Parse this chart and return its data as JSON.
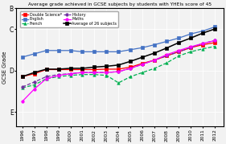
{
  "title": "Average grade achieved in GCSE subjects by students with YHEIs score of 45",
  "ylabel": "GCSE Grade",
  "years": [
    1996,
    1997,
    1998,
    1999,
    2000,
    2001,
    2002,
    2003,
    2004,
    2005,
    2006,
    2007,
    2008,
    2009,
    2010,
    2011,
    2012
  ],
  "series": {
    "Double Science*": {
      "color": "#ff0000",
      "style": "-",
      "marker": "s",
      "markersize": 2.5,
      "lw": 0.9,
      "values": [
        3.15,
        3.08,
        2.98,
        2.98,
        2.98,
        2.98,
        2.98,
        2.97,
        2.97,
        2.92,
        2.83,
        2.75,
        2.65,
        2.55,
        2.45,
        2.38,
        2.33
      ]
    },
    "English": {
      "color": "#4472c4",
      "style": "-",
      "marker": "s",
      "markersize": 2.5,
      "lw": 0.9,
      "values": [
        2.68,
        2.6,
        2.52,
        2.52,
        2.52,
        2.55,
        2.55,
        2.55,
        2.55,
        2.5,
        2.45,
        2.38,
        2.3,
        2.22,
        2.12,
        2.05,
        1.95
      ]
    },
    "French": {
      "color": "#00b050",
      "style": "--",
      "marker": "^",
      "markersize": 2.5,
      "lw": 0.9,
      "values": [
        3.42,
        3.35,
        3.2,
        3.15,
        3.12,
        3.1,
        3.1,
        3.12,
        3.3,
        3.15,
        3.05,
        2.95,
        2.82,
        2.65,
        2.55,
        2.48,
        2.42
      ]
    },
    "History": {
      "color": "#7030a0",
      "style": "--",
      "marker": "o",
      "markersize": 2.5,
      "lw": 0.9,
      "values": [
        3.4,
        3.28,
        3.15,
        3.1,
        3.08,
        3.05,
        3.05,
        3.05,
        3.03,
        2.95,
        2.85,
        2.75,
        2.65,
        2.55,
        2.45,
        2.35,
        2.28
      ]
    },
    "Maths": {
      "color": "#ff00ff",
      "style": "-",
      "marker": "o",
      "markersize": 2.5,
      "lw": 0.9,
      "values": [
        3.75,
        3.45,
        3.2,
        3.12,
        3.08,
        3.05,
        3.05,
        3.05,
        3.03,
        2.95,
        2.85,
        2.75,
        2.62,
        2.52,
        2.43,
        2.35,
        2.28
      ]
    },
    "Average of 26 subjects": {
      "color": "#000000",
      "style": "-",
      "marker": "s",
      "markersize": 3.2,
      "lw": 1.1,
      "values": [
        3.15,
        3.05,
        2.97,
        2.97,
        2.95,
        2.95,
        2.92,
        2.9,
        2.87,
        2.78,
        2.68,
        2.58,
        2.46,
        2.33,
        2.22,
        2.1,
        2.0
      ]
    }
  },
  "ytick_positions": [
    1.5,
    2.0,
    3.0,
    4.0
  ],
  "ytick_labels": [
    "B",
    "C",
    "D",
    "E"
  ],
  "ylim": [
    4.35,
    1.55
  ],
  "xlim": [
    1995.5,
    2012.7
  ],
  "background_color": "#f2f2f2",
  "grid_color": "#ffffff",
  "legend_order": [
    "Double Science*",
    "English",
    "French",
    "History",
    "Maths",
    "Average of 26 subjects"
  ]
}
